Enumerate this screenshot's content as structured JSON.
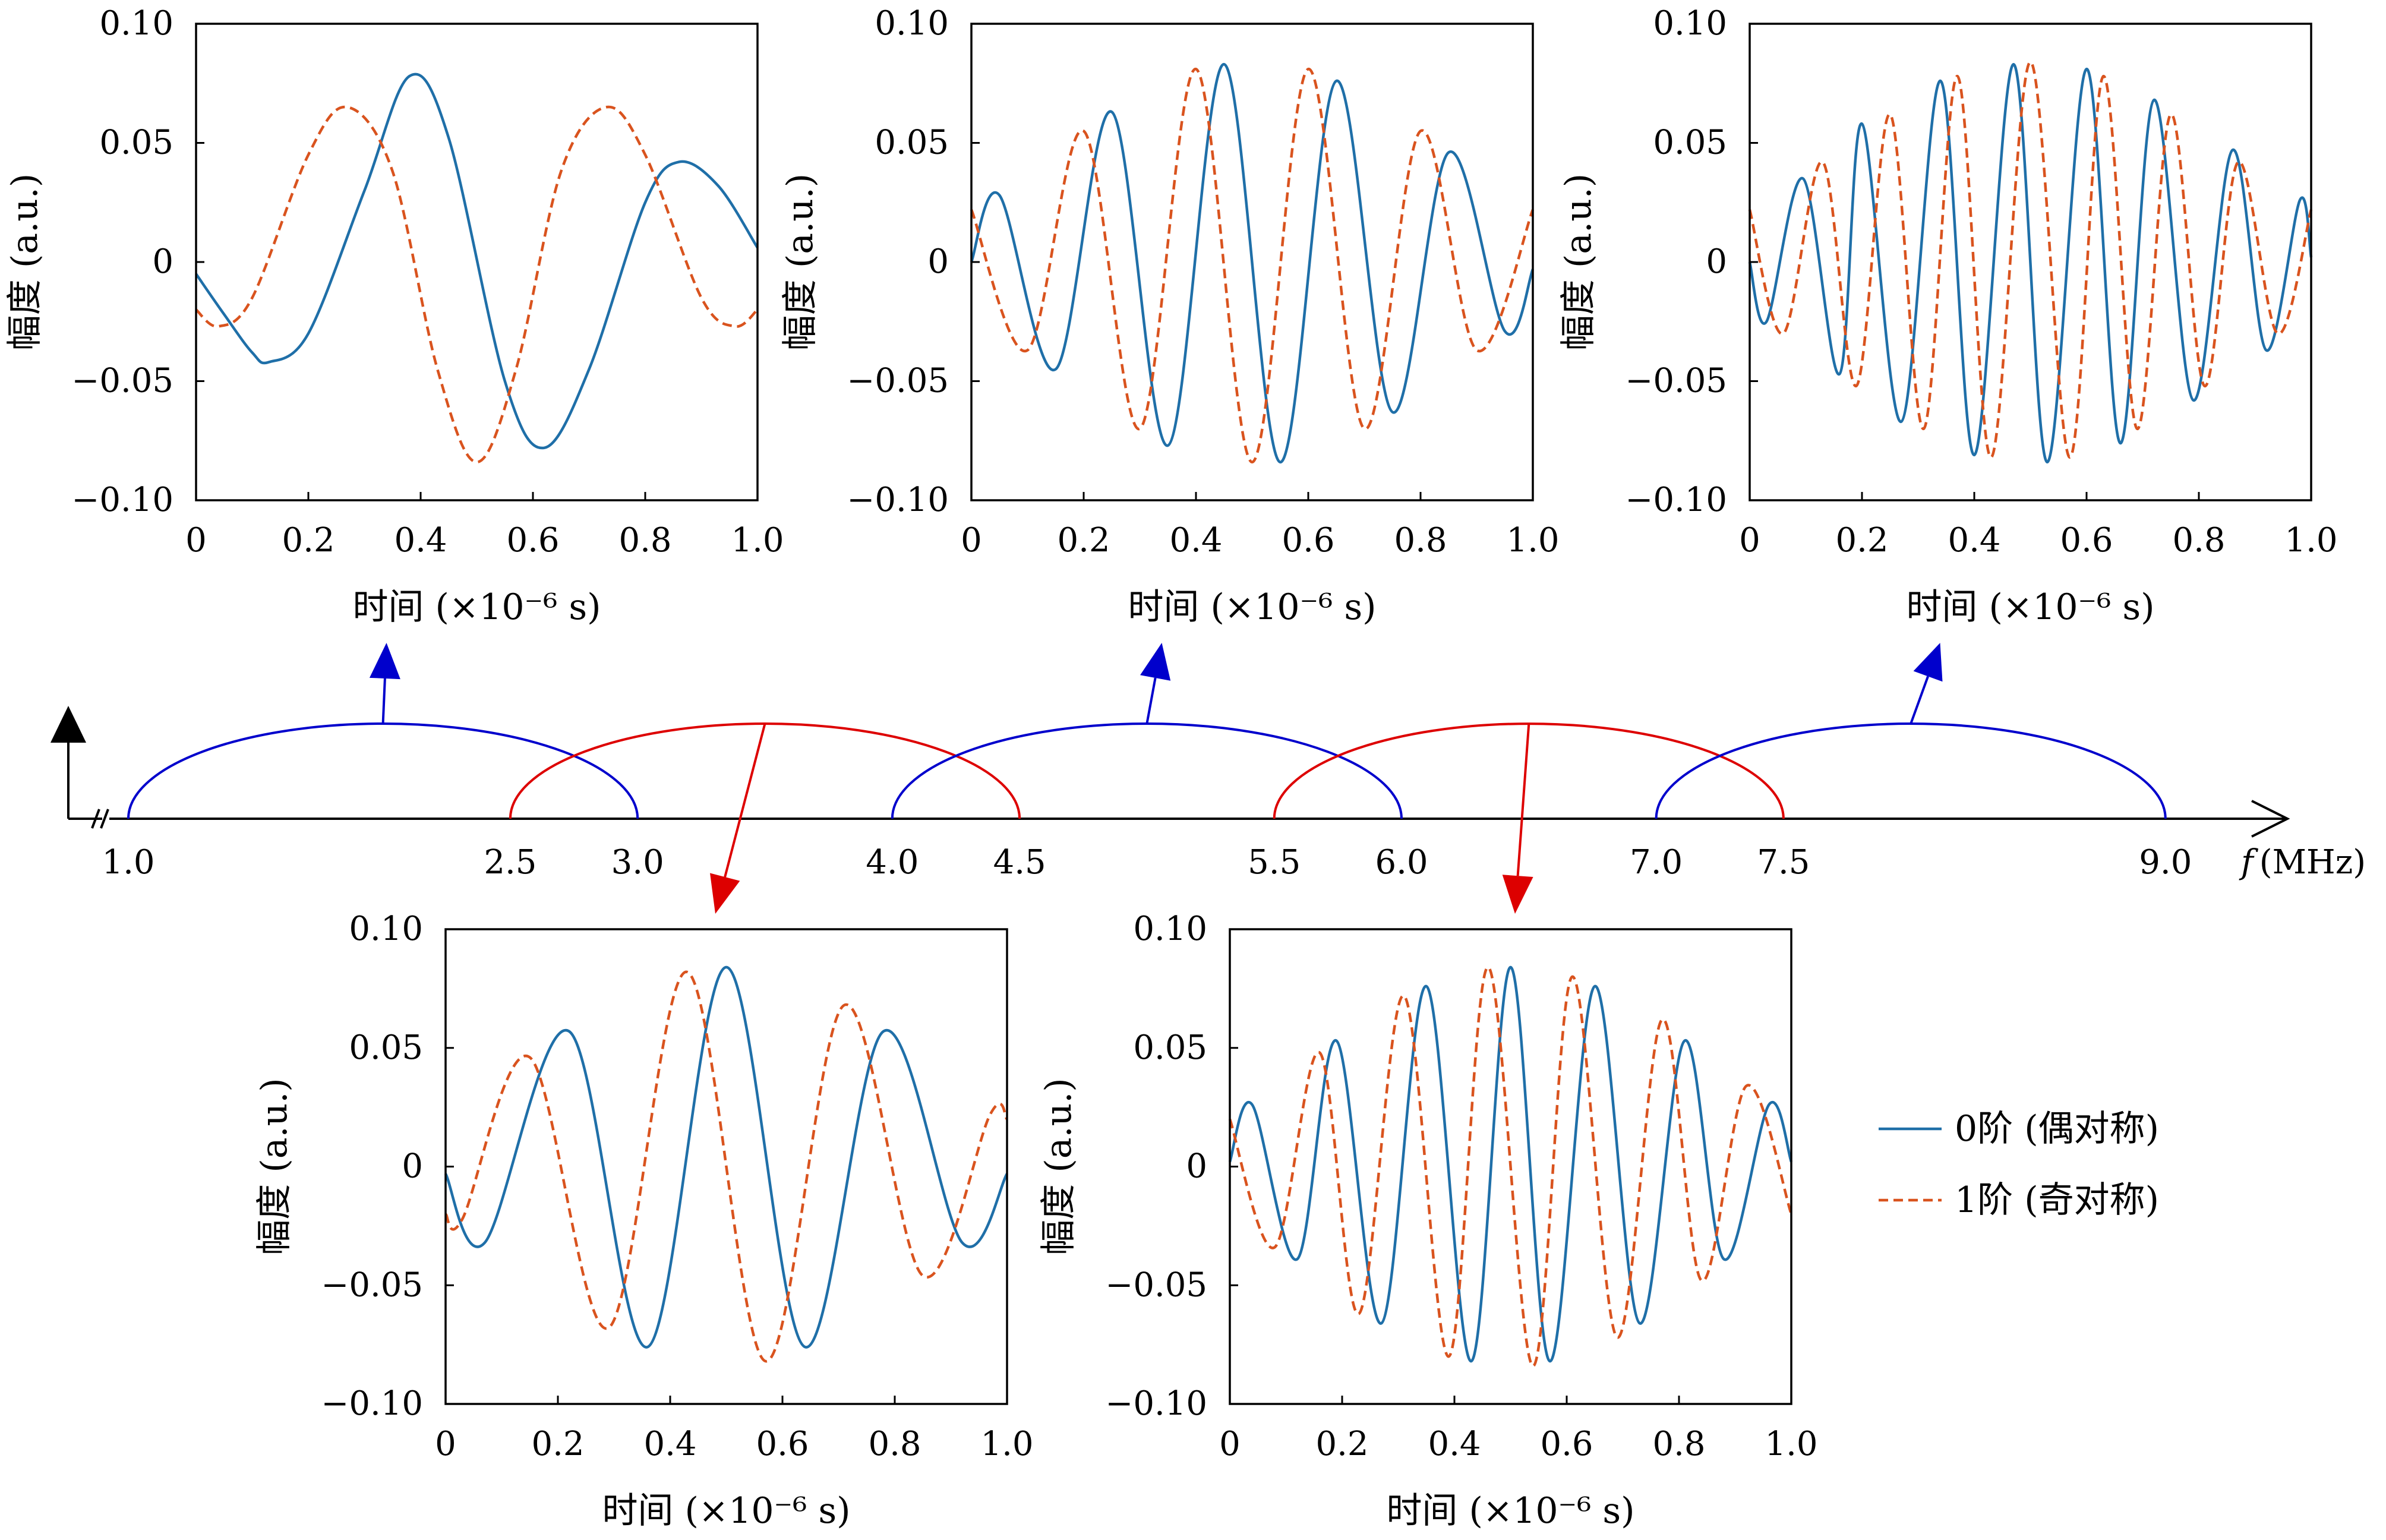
{
  "chart_data": [
    {
      "type": "line",
      "panel": "top-1",
      "ylabel": "幅度 (a.u.)",
      "xlabel": "时间 (×10⁻⁶ s)",
      "xlim": [
        0,
        1.0
      ],
      "ylim": [
        -0.1,
        0.1
      ],
      "x_ticks": [
        "0",
        "0.2",
        "0.4",
        "0.6",
        "0.8",
        "1.0"
      ],
      "y_ticks": [
        "0.10",
        "0.05",
        "0",
        "−0.05",
        "−0.10"
      ],
      "band_mhz": [
        1.0,
        3.0
      ],
      "series": [
        {
          "name": "0阶 (偶对称)",
          "style": "solid",
          "color": "#1f6fa8",
          "x": [
            0,
            0.05,
            0.1,
            0.13,
            0.2,
            0.3,
            0.38,
            0.45,
            0.55,
            0.62,
            0.7,
            0.8,
            0.86,
            0.93,
            1.0
          ],
          "y": [
            -0.005,
            -0.022,
            -0.038,
            -0.042,
            -0.03,
            0.03,
            0.078,
            0.052,
            -0.05,
            -0.078,
            -0.045,
            0.025,
            0.042,
            0.032,
            0.006
          ]
        },
        {
          "name": "1阶 (奇对称)",
          "style": "dashed",
          "color": "#d9531e",
          "x": [
            0,
            0.04,
            0.1,
            0.2,
            0.27,
            0.35,
            0.43,
            0.5,
            0.57,
            0.65,
            0.73,
            0.8,
            0.9,
            0.96,
            1.0
          ],
          "y": [
            -0.02,
            -0.027,
            -0.015,
            0.045,
            0.065,
            0.038,
            -0.045,
            -0.084,
            -0.045,
            0.038,
            0.065,
            0.045,
            -0.015,
            -0.027,
            -0.02
          ]
        }
      ]
    },
    {
      "type": "line",
      "panel": "top-2",
      "ylabel": "幅度 (a.u.)",
      "xlabel": "时间 (×10⁻⁶ s)",
      "xlim": [
        0,
        1.0
      ],
      "ylim": [
        -0.1,
        0.1
      ],
      "x_ticks": [
        "0",
        "0.2",
        "0.4",
        "0.6",
        "0.8",
        "1.0"
      ],
      "y_ticks": [
        "0.10",
        "0.05",
        "0",
        "−0.05",
        "−0.10"
      ],
      "band_mhz": [
        4.0,
        6.0
      ],
      "series": [
        {
          "name": "0阶 (偶对称)",
          "style": "solid",
          "color": "#1f6fa8",
          "x": [
            0,
            0.05,
            0.15,
            0.25,
            0.35,
            0.45,
            0.55,
            0.65,
            0.75,
            0.85,
            0.95,
            1.0
          ],
          "y": [
            0.0,
            0.028,
            -0.045,
            0.063,
            -0.077,
            0.083,
            -0.084,
            0.076,
            -0.063,
            0.046,
            -0.029,
            -0.003
          ]
        },
        {
          "name": "1阶 (奇对称)",
          "style": "dashed",
          "color": "#d9531e",
          "x": [
            0,
            0.1,
            0.2,
            0.3,
            0.4,
            0.5,
            0.6,
            0.7,
            0.8,
            0.9,
            1.0
          ],
          "y": [
            0.022,
            -0.037,
            0.055,
            -0.07,
            0.081,
            -0.084,
            0.081,
            -0.07,
            0.055,
            -0.037,
            0.022
          ]
        }
      ]
    },
    {
      "type": "line",
      "panel": "top-3",
      "ylabel": "幅度 (a.u.)",
      "xlabel": "时间 (×10⁻⁶ s)",
      "xlim": [
        0,
        1.0
      ],
      "ylim": [
        -0.1,
        0.1
      ],
      "x_ticks": [
        "0",
        "0.2",
        "0.4",
        "0.6",
        "0.8",
        "1.0"
      ],
      "y_ticks": [
        "0.10",
        "0.05",
        "0",
        "−0.05",
        "−0.10"
      ],
      "band_mhz": [
        7.0,
        9.0
      ],
      "series": [
        {
          "name": "0阶 (偶对称)",
          "style": "solid",
          "color": "#1f6fa8",
          "x": [
            0,
            0.03,
            0.095,
            0.16,
            0.2,
            0.27,
            0.34,
            0.4,
            0.47,
            0.53,
            0.6,
            0.66,
            0.72,
            0.79,
            0.86,
            0.92,
            0.98,
            1.0
          ],
          "y": [
            0.0,
            -0.025,
            0.035,
            -0.047,
            0.058,
            -0.067,
            0.076,
            -0.081,
            0.083,
            -0.084,
            0.081,
            -0.076,
            0.068,
            -0.058,
            0.047,
            -0.037,
            0.026,
            0.002
          ]
        },
        {
          "name": "1阶 (奇对称)",
          "style": "dashed",
          "color": "#d9531e",
          "x": [
            0,
            0.06,
            0.13,
            0.19,
            0.25,
            0.31,
            0.37,
            0.43,
            0.5,
            0.57,
            0.63,
            0.69,
            0.75,
            0.81,
            0.87,
            0.94,
            1.0
          ],
          "y": [
            0.022,
            -0.03,
            0.042,
            -0.052,
            0.062,
            -0.07,
            0.078,
            -0.082,
            0.084,
            -0.082,
            0.078,
            -0.07,
            0.062,
            -0.052,
            0.042,
            -0.03,
            0.022
          ]
        }
      ]
    },
    {
      "type": "line",
      "panel": "bottom-1",
      "ylabel": "幅度 (a.u.)",
      "xlabel": "时间 (×10⁻⁶ s)",
      "xlim": [
        0,
        1.0
      ],
      "ylim": [
        -0.1,
        0.1
      ],
      "x_ticks": [
        "0",
        "0.2",
        "0.4",
        "0.6",
        "0.8",
        "1.0"
      ],
      "y_ticks": [
        "0.10",
        "0.05",
        "0",
        "−0.05",
        "−0.10"
      ],
      "band_mhz": [
        2.5,
        4.5
      ],
      "series": [
        {
          "name": "0阶 (偶对称)",
          "style": "solid",
          "color": "#1f6fa8",
          "x": [
            0,
            0.07,
            0.22,
            0.36,
            0.5,
            0.64,
            0.78,
            0.92,
            1.0
          ],
          "y": [
            -0.003,
            -0.032,
            0.057,
            -0.076,
            0.084,
            -0.076,
            0.057,
            -0.032,
            -0.003
          ]
        },
        {
          "name": "1阶 (奇对称)",
          "style": "dashed",
          "color": "#d9531e",
          "x": [
            0,
            0.03,
            0.15,
            0.29,
            0.43,
            0.57,
            0.71,
            0.85,
            0.97,
            1.0
          ],
          "y": [
            -0.02,
            -0.022,
            0.046,
            -0.068,
            0.082,
            -0.082,
            0.068,
            -0.046,
            0.022,
            0.02
          ]
        }
      ]
    },
    {
      "type": "line",
      "panel": "bottom-2",
      "ylabel": "幅度 (a.u.)",
      "xlabel": "时间 (×10⁻⁶ s)",
      "xlim": [
        0,
        1.0
      ],
      "ylim": [
        -0.1,
        0.1
      ],
      "x_ticks": [
        "0",
        "0.2",
        "0.4",
        "0.6",
        "0.8",
        "1.0"
      ],
      "y_ticks": [
        "0.10",
        "0.05",
        "0",
        "−0.05",
        "−0.10"
      ],
      "band_mhz": [
        5.5,
        7.5
      ],
      "series": [
        {
          "name": "0阶 (偶对称)",
          "style": "solid",
          "color": "#1f6fa8",
          "x": [
            0,
            0.04,
            0.12,
            0.19,
            0.27,
            0.35,
            0.43,
            0.5,
            0.57,
            0.65,
            0.73,
            0.81,
            0.88,
            0.96,
            1.0
          ],
          "y": [
            0.002,
            0.026,
            -0.039,
            0.053,
            -0.066,
            0.076,
            -0.082,
            0.084,
            -0.082,
            0.076,
            -0.066,
            0.053,
            -0.039,
            0.026,
            0.002
          ]
        },
        {
          "name": "1阶 (奇对称)",
          "style": "dashed",
          "color": "#d9531e",
          "x": [
            0,
            0.08,
            0.16,
            0.23,
            0.31,
            0.39,
            0.46,
            0.54,
            0.61,
            0.69,
            0.77,
            0.84,
            0.92,
            1.0
          ],
          "y": [
            0.02,
            -0.034,
            0.048,
            -0.062,
            0.072,
            -0.08,
            0.084,
            -0.084,
            0.08,
            -0.072,
            0.062,
            -0.048,
            0.034,
            -0.02
          ]
        }
      ]
    }
  ],
  "frequency_axis": {
    "label_italic": "f",
    "label_unit": "(MHz)",
    "ticks": [
      "1.0",
      "2.5",
      "3.0",
      "4.0",
      "4.5",
      "5.5",
      "6.0",
      "7.0",
      "7.5",
      "9.0"
    ],
    "bands": [
      {
        "from": 1.0,
        "to": 3.0,
        "color": "#0000cc",
        "points_to": "top-1"
      },
      {
        "from": 2.5,
        "to": 4.5,
        "color": "#dd0000",
        "points_to": "bottom-1"
      },
      {
        "from": 4.0,
        "to": 6.0,
        "color": "#0000cc",
        "points_to": "top-2"
      },
      {
        "from": 5.5,
        "to": 7.5,
        "color": "#dd0000",
        "points_to": "bottom-2"
      },
      {
        "from": 7.0,
        "to": 9.0,
        "color": "#0000cc",
        "points_to": "top-3"
      }
    ]
  },
  "legend": {
    "placement": "right of bottom panels",
    "items": [
      {
        "label": "0阶 (偶对称)",
        "style": "solid",
        "color": "#1f6fa8"
      },
      {
        "label": "1阶 (奇对称)",
        "style": "dashed",
        "color": "#d9531e"
      }
    ]
  }
}
